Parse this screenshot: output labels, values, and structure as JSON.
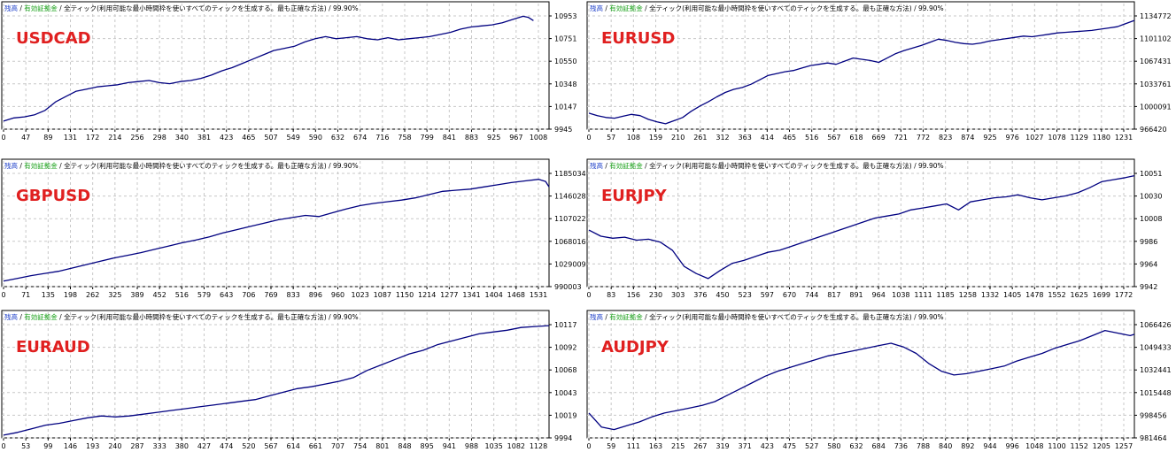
{
  "colors": {
    "line": "#000080",
    "grid": "#c8c8c8",
    "frame": "#000000",
    "label": "#e02020",
    "legend_balance": "#1a3cc8",
    "legend_equity": "#18a018",
    "legend_text": "#000000"
  },
  "chart_data": [
    {
      "type": "line",
      "title": "USDCAD",
      "legend": [
        "残高",
        "有効証拠金",
        "全ティック(利用可能な最小時間枠を使いすべてのティックを生成する。最も正確な方法)",
        "99.90%"
      ],
      "x_ticks": [
        "0",
        "47",
        "89",
        "131",
        "172",
        "214",
        "256",
        "298",
        "340",
        "381",
        "423",
        "465",
        "507",
        "549",
        "590",
        "632",
        "674",
        "716",
        "758",
        "799",
        "841",
        "883",
        "925",
        "967",
        "1008"
      ],
      "y_ticks": [
        "10953",
        "10751",
        "10550",
        "10348",
        "10147",
        "9945"
      ],
      "x_range": [
        0,
        1050
      ],
      "y_range": [
        9945,
        11020
      ],
      "series": [
        {
          "x": [
            0,
            20,
            40,
            60,
            80,
            100,
            120,
            140,
            160,
            180,
            200,
            220,
            240,
            260,
            280,
            300,
            320,
            340,
            360,
            380,
            400,
            420,
            440,
            460,
            480,
            500,
            520,
            540,
            560,
            580,
            600,
            620,
            640,
            660,
            680,
            700,
            720,
            740,
            760,
            780,
            800,
            820,
            840,
            860,
            880,
            900,
            920,
            940,
            960,
            980,
            1000,
            1010,
            1020
          ],
          "y": [
            10020,
            10050,
            10060,
            10080,
            10120,
            10200,
            10250,
            10300,
            10320,
            10340,
            10350,
            10360,
            10380,
            10390,
            10400,
            10380,
            10370,
            10390,
            10400,
            10420,
            10450,
            10490,
            10520,
            10560,
            10600,
            10640,
            10680,
            10700,
            10720,
            10760,
            10790,
            10810,
            10790,
            10800,
            10810,
            10790,
            10780,
            10800,
            10780,
            10790,
            10800,
            10810,
            10830,
            10850,
            10880,
            10900,
            10910,
            10920,
            10940,
            10970,
            11000,
            10990,
            10960
          ]
        }
      ]
    },
    {
      "type": "line",
      "title": "EURUSD",
      "legend": [
        "残高",
        "有効証拠金",
        "全ティック(利用可能な最小時間枠を使いすべてのティックを生成する。最も正確な方法)",
        "99.90%"
      ],
      "x_ticks": [
        "0",
        "57",
        "108",
        "159",
        "210",
        "261",
        "312",
        "363",
        "414",
        "465",
        "516",
        "567",
        "618",
        "669",
        "721",
        "772",
        "823",
        "874",
        "925",
        "976",
        "1027",
        "1078",
        "1129",
        "1180",
        "1231"
      ],
      "y_ticks": [
        "1134772",
        "1101102",
        "1067431",
        "1033761",
        "1000091",
        "966420"
      ],
      "x_range": [
        0,
        1280
      ],
      "y_range": [
        966420,
        1150000
      ],
      "series": [
        {
          "x": [
            0,
            20,
            40,
            60,
            80,
            100,
            120,
            140,
            160,
            180,
            200,
            220,
            240,
            260,
            280,
            300,
            320,
            340,
            360,
            380,
            400,
            420,
            440,
            460,
            480,
            500,
            520,
            540,
            560,
            580,
            600,
            620,
            640,
            660,
            680,
            700,
            720,
            740,
            760,
            780,
            800,
            820,
            840,
            860,
            880,
            900,
            920,
            940,
            960,
            980,
            1000,
            1020,
            1040,
            1060,
            1080,
            1100,
            1120,
            1140,
            1160,
            1180,
            1200,
            1220,
            1240,
            1260,
            1280
          ],
          "y": [
            992000,
            988000,
            985000,
            984000,
            987000,
            990000,
            988000,
            982000,
            978000,
            975000,
            980000,
            985000,
            995000,
            1003000,
            1010000,
            1018000,
            1025000,
            1030000,
            1033000,
            1038000,
            1045000,
            1052000,
            1055000,
            1058000,
            1060000,
            1064000,
            1068000,
            1070000,
            1072000,
            1070000,
            1075000,
            1080000,
            1078000,
            1076000,
            1073000,
            1080000,
            1087000,
            1092000,
            1096000,
            1100000,
            1105000,
            1110000,
            1108000,
            1105000,
            1103000,
            1102000,
            1104000,
            1107000,
            1109000,
            1111000,
            1113000,
            1115000,
            1114000,
            1116000,
            1118000,
            1120000,
            1121000,
            1122000,
            1123000,
            1124000,
            1126000,
            1128000,
            1130000,
            1135000,
            1140000
          ]
        }
      ]
    },
    {
      "type": "line",
      "title": "GBPUSD",
      "legend": [
        "残高",
        "有効証拠金",
        "全ティック(利用可能な最小時間枠を使いすべてのティックを生成する。最も正確な方法)",
        "99.90%"
      ],
      "x_ticks": [
        "0",
        "71",
        "135",
        "198",
        "262",
        "325",
        "389",
        "452",
        "516",
        "579",
        "643",
        "706",
        "769",
        "833",
        "896",
        "960",
        "1023",
        "1087",
        "1150",
        "1214",
        "1277",
        "1341",
        "1404",
        "1468",
        "1531"
      ],
      "y_ticks": [
        "1185034",
        "1146028",
        "1107022",
        "1068016",
        "1029009",
        "990003"
      ],
      "x_range": [
        0,
        1590
      ],
      "y_range": [
        990003,
        1200000
      ],
      "series": [
        {
          "x": [
            0,
            40,
            80,
            120,
            160,
            200,
            240,
            280,
            320,
            360,
            400,
            440,
            480,
            520,
            560,
            600,
            640,
            680,
            720,
            760,
            800,
            840,
            880,
            920,
            960,
            1000,
            1040,
            1080,
            1120,
            1160,
            1200,
            1240,
            1280,
            1320,
            1360,
            1400,
            1440,
            1480,
            1520,
            1560,
            1580,
            1590
          ],
          "y": [
            1000000,
            1005000,
            1010000,
            1014000,
            1018000,
            1024000,
            1030000,
            1036000,
            1042000,
            1047000,
            1052000,
            1058000,
            1064000,
            1070000,
            1075000,
            1081000,
            1088000,
            1094000,
            1100000,
            1106000,
            1112000,
            1116000,
            1120000,
            1118000,
            1125000,
            1132000,
            1138000,
            1142000,
            1145000,
            1148000,
            1152000,
            1158000,
            1164000,
            1166000,
            1168000,
            1172000,
            1176000,
            1180000,
            1183000,
            1186000,
            1182000,
            1172000
          ]
        }
      ]
    },
    {
      "type": "line",
      "title": "EURJPY",
      "legend": [
        "残高",
        "有効証拠金",
        "全ティック(利用可能な最小時間枠を使いすべてのティックを生成する。最も正確な方法)",
        "99.90%"
      ],
      "x_ticks": [
        "0",
        "83",
        "156",
        "230",
        "303",
        "376",
        "450",
        "523",
        "597",
        "670",
        "744",
        "817",
        "891",
        "964",
        "1038",
        "1111",
        "1185",
        "1258",
        "1332",
        "1405",
        "1478",
        "1552",
        "1625",
        "1699",
        "1772"
      ],
      "y_ticks": [
        "10051",
        "10030",
        "10008",
        "9986",
        "9964",
        "9942"
      ],
      "x_range": [
        0,
        1830
      ],
      "y_range": [
        9942,
        10056
      ],
      "series": [
        {
          "x": [
            0,
            40,
            80,
            120,
            160,
            200,
            240,
            280,
            320,
            360,
            400,
            440,
            480,
            520,
            560,
            600,
            640,
            680,
            720,
            760,
            800,
            840,
            880,
            920,
            960,
            1000,
            1040,
            1080,
            1120,
            1160,
            1200,
            1240,
            1280,
            1320,
            1360,
            1400,
            1440,
            1480,
            1520,
            1560,
            1600,
            1640,
            1680,
            1720,
            1760,
            1800,
            1830
          ],
          "y": [
            9998,
            9992,
            9990,
            9991,
            9988,
            9989,
            9986,
            9978,
            9962,
            9955,
            9950,
            9958,
            9965,
            9968,
            9972,
            9976,
            9978,
            9982,
            9986,
            9990,
            9994,
            9998,
            10002,
            10006,
            10010,
            10012,
            10014,
            10018,
            10020,
            10022,
            10024,
            10018,
            10026,
            10028,
            10030,
            10031,
            10033,
            10030,
            10028,
            10030,
            10032,
            10035,
            10040,
            10046,
            10048,
            10050,
            10052
          ]
        }
      ]
    },
    {
      "type": "line",
      "title": "EURAUD",
      "legend": [
        "残高",
        "有効証拠金",
        "全ティック(利用可能な最小時間枠を使いすべてのティックを生成する。最も正確な方法)",
        "99.90%"
      ],
      "x_ticks": [
        "0",
        "53",
        "99",
        "146",
        "193",
        "240",
        "287",
        "333",
        "380",
        "427",
        "474",
        "520",
        "567",
        "614",
        "661",
        "707",
        "754",
        "801",
        "848",
        "895",
        "941",
        "988",
        "1035",
        "1082",
        "1128"
      ],
      "y_ticks": [
        "10117",
        "10092",
        "10068",
        "10043",
        "10019",
        "9994"
      ],
      "x_range": [
        0,
        1170
      ],
      "y_range": [
        9994,
        10120
      ],
      "series": [
        {
          "x": [
            0,
            30,
            60,
            90,
            120,
            150,
            180,
            210,
            240,
            270,
            300,
            330,
            360,
            390,
            420,
            450,
            480,
            510,
            540,
            570,
            600,
            630,
            660,
            690,
            720,
            750,
            780,
            810,
            840,
            870,
            900,
            930,
            960,
            990,
            1020,
            1050,
            1080,
            1110,
            1140,
            1170
          ],
          "y": [
            9997,
            10000,
            10004,
            10008,
            10010,
            10013,
            10016,
            10018,
            10017,
            10018,
            10020,
            10022,
            10024,
            10026,
            10028,
            10030,
            10032,
            10034,
            10036,
            10040,
            10044,
            10048,
            10050,
            10053,
            10056,
            10060,
            10068,
            10074,
            10080,
            10086,
            10090,
            10096,
            10100,
            10104,
            10108,
            10110,
            10112,
            10115,
            10116,
            10117
          ]
        }
      ]
    },
    {
      "type": "line",
      "title": "AUDJPY",
      "legend": [
        "残高",
        "有効証拠金",
        "全ティック(利用可能な最小時間枠を使いすべてのティックを生成する。最も正確な方法)",
        "99.90%"
      ],
      "x_ticks": [
        "0",
        "59",
        "111",
        "163",
        "215",
        "267",
        "319",
        "371",
        "423",
        "475",
        "527",
        "580",
        "632",
        "684",
        "736",
        "788",
        "840",
        "892",
        "944",
        "996",
        "1048",
        "1100",
        "1152",
        "1205",
        "1257"
      ],
      "y_ticks": [
        "1066426",
        "1049433",
        "1032441",
        "1015448",
        "998456",
        "981464"
      ],
      "x_range": [
        0,
        1300
      ],
      "y_range": [
        981464,
        1072000
      ],
      "series": [
        {
          "x": [
            0,
            30,
            60,
            90,
            120,
            150,
            180,
            210,
            240,
            270,
            300,
            330,
            360,
            390,
            420,
            450,
            480,
            510,
            540,
            570,
            600,
            630,
            660,
            690,
            720,
            750,
            780,
            810,
            840,
            870,
            900,
            930,
            960,
            990,
            1020,
            1050,
            1080,
            1110,
            1140,
            1170,
            1200,
            1230,
            1260,
            1290,
            1300
          ],
          "y": [
            1001000,
            990000,
            988000,
            991000,
            994000,
            998000,
            1001000,
            1003000,
            1005000,
            1007000,
            1010000,
            1015000,
            1020000,
            1025000,
            1030000,
            1034000,
            1037000,
            1040000,
            1043000,
            1046000,
            1048000,
            1050000,
            1052000,
            1054000,
            1056000,
            1053000,
            1048000,
            1040000,
            1034000,
            1031000,
            1032000,
            1034000,
            1036000,
            1038000,
            1042000,
            1045000,
            1048000,
            1052000,
            1055000,
            1058000,
            1062000,
            1066000,
            1064000,
            1062000,
            1063000
          ]
        }
      ]
    }
  ]
}
